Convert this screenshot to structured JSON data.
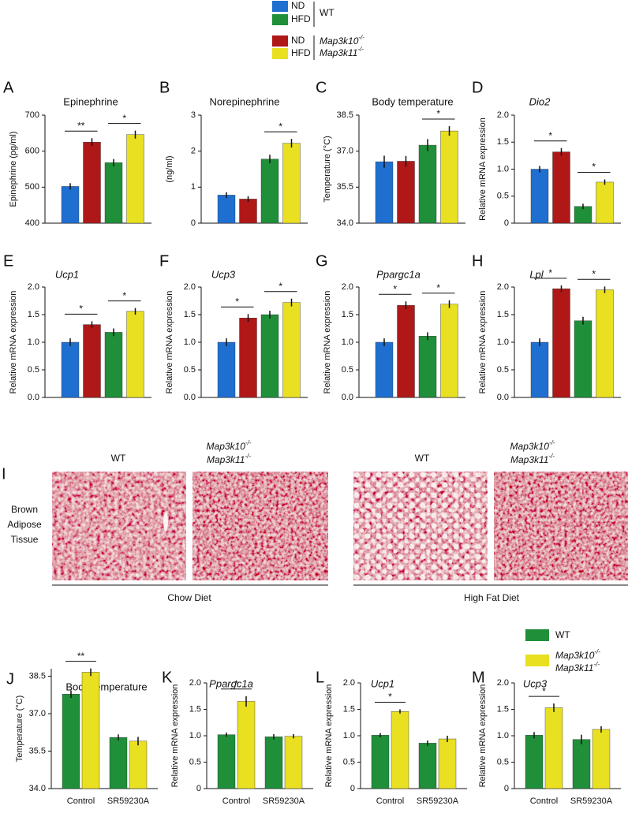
{
  "genotypes": {
    "wt": "WT",
    "ko": [
      {
        "text": "Map3k10",
        "sup": "-/-"
      },
      {
        "text": "Map3k11",
        "sup": "-/-"
      }
    ]
  },
  "legend_top": {
    "entries": [
      {
        "label": "ND",
        "color": "#1f6fd1"
      },
      {
        "label": "HFD",
        "color": "#1f8f3a"
      },
      {
        "label": "ND",
        "color": "#b01818"
      },
      {
        "label": "HFD",
        "color": "#e8e020"
      }
    ]
  },
  "histology": {
    "panel": "I",
    "row_label": [
      "Brown",
      "Adipose",
      "Tissue"
    ],
    "diets": [
      "Chow Diet",
      "High Fat Diet"
    ]
  },
  "legend_bottom": {
    "colors": [
      "#1f8f3a",
      "#e8e020"
    ]
  },
  "chart_data": [
    {
      "type": "bar",
      "panel": "A",
      "title": "Epinephrine",
      "ylabel": "Epinephrine (pg/ml)",
      "values": [
        502,
        625,
        568,
        646
      ],
      "errors": [
        9,
        11,
        10,
        11
      ],
      "colors": [
        "#1f6fd1",
        "#b01818",
        "#1f8f3a",
        "#e8e020"
      ],
      "significance": [
        "**",
        "*"
      ],
      "ylim": [
        400,
        700
      ],
      "yticks": [
        400,
        500,
        600,
        700
      ]
    },
    {
      "type": "bar",
      "panel": "B",
      "title": "Norepinephrine",
      "ylabel": "(ng/ml)",
      "values": [
        0.78,
        0.67,
        1.78,
        2.22
      ],
      "errors": [
        0.08,
        0.08,
        0.12,
        0.12
      ],
      "colors": [
        "#1f6fd1",
        "#b01818",
        "#1f8f3a",
        "#e8e020"
      ],
      "significance": [
        null,
        "*"
      ],
      "ylim": [
        0,
        3
      ],
      "yticks": [
        0,
        1,
        2,
        3
      ]
    },
    {
      "type": "bar",
      "panel": "C",
      "title": "Body temperature",
      "ylabel": "Temperature (°C)",
      "values": [
        36.56,
        36.58,
        37.25,
        37.84
      ],
      "errors": [
        0.25,
        0.22,
        0.25,
        0.2
      ],
      "colors": [
        "#1f6fd1",
        "#b01818",
        "#1f8f3a",
        "#e8e020"
      ],
      "significance": [
        null,
        "*"
      ],
      "ylim": [
        34,
        38.5
      ],
      "yticks": [
        {
          "value": 34,
          "label": "34.0"
        },
        35.5,
        {
          "value": 37,
          "label": "37.0"
        },
        38.5
      ]
    },
    {
      "type": "bar",
      "panel": "D",
      "title": "Dio2",
      "title_italic": true,
      "ylabel": "Relative mRNA expression",
      "values": [
        1.0,
        1.32,
        0.31,
        0.76
      ],
      "errors": [
        0.06,
        0.07,
        0.05,
        0.05
      ],
      "colors": [
        "#1f6fd1",
        "#b01818",
        "#1f8f3a",
        "#e8e020"
      ],
      "significance": [
        "*",
        "*"
      ],
      "ylim": [
        0,
        2
      ],
      "yticks": [
        0,
        0.5,
        {
          "value": 1,
          "label": "1.0"
        },
        1.5,
        {
          "value": 2,
          "label": "2.0"
        }
      ]
    },
    {
      "type": "bar",
      "panel": "E",
      "title": "Ucp1",
      "title_italic": true,
      "ylabel": "Relative mRNA expression",
      "values": [
        1.0,
        1.32,
        1.18,
        1.56
      ],
      "errors": [
        0.07,
        0.06,
        0.07,
        0.06
      ],
      "colors": [
        "#1f6fd1",
        "#b01818",
        "#1f8f3a",
        "#e8e020"
      ],
      "significance": [
        "*",
        "*"
      ],
      "ylim": [
        0,
        2
      ],
      "yticks": [
        {
          "value": 0,
          "label": "0.0"
        },
        0.5,
        {
          "value": 1,
          "label": "1.0"
        },
        1.5,
        {
          "value": 2,
          "label": "2.0"
        }
      ]
    },
    {
      "type": "bar",
      "panel": "F",
      "title": "Ucp3",
      "title_italic": true,
      "ylabel": "Relative mRNA expression",
      "values": [
        1.0,
        1.44,
        1.5,
        1.72
      ],
      "errors": [
        0.07,
        0.07,
        0.07,
        0.07
      ],
      "colors": [
        "#1f6fd1",
        "#b01818",
        "#1f8f3a",
        "#e8e020"
      ],
      "significance": [
        "*",
        "*"
      ],
      "ylim": [
        0,
        2
      ],
      "yticks": [
        {
          "value": 0,
          "label": "0.0"
        },
        0.5,
        {
          "value": 1,
          "label": "1.0"
        },
        1.5,
        {
          "value": 2,
          "label": "2.0"
        }
      ]
    },
    {
      "type": "bar",
      "panel": "G",
      "title": "Ppargc1a",
      "title_italic": true,
      "ylabel": "Relative mRNA expression",
      "values": [
        1.0,
        1.67,
        1.11,
        1.69
      ],
      "errors": [
        0.07,
        0.07,
        0.07,
        0.07
      ],
      "colors": [
        "#1f6fd1",
        "#b01818",
        "#1f8f3a",
        "#e8e020"
      ],
      "significance": [
        "*",
        "*"
      ],
      "ylim": [
        0,
        2
      ],
      "yticks": [
        {
          "value": 0,
          "label": "0.0"
        },
        0.5,
        {
          "value": 1,
          "label": "1.0"
        },
        1.5,
        {
          "value": 2,
          "label": "2.0"
        }
      ]
    },
    {
      "type": "bar",
      "panel": "H",
      "title": "Lpl",
      "title_italic": true,
      "ylabel": "Relative mRNA expression",
      "values": [
        1.0,
        1.97,
        1.39,
        1.95
      ],
      "errors": [
        0.07,
        0.06,
        0.07,
        0.06
      ],
      "colors": [
        "#1f6fd1",
        "#b01818",
        "#1f8f3a",
        "#e8e020"
      ],
      "significance": [
        "*",
        "*"
      ],
      "ylim": [
        0,
        2
      ],
      "yticks": [
        {
          "value": 0,
          "label": "0.0"
        },
        0.5,
        {
          "value": 1,
          "label": "1.0"
        },
        1.5,
        {
          "value": 2,
          "label": "2.0"
        }
      ]
    },
    {
      "type": "bar",
      "panel": "J",
      "title": "Body temperature",
      "ylabel": "Temperature (°C)",
      "categories": [
        "Control",
        "SR59230A"
      ],
      "series": [
        {
          "color": "#1f8f3a",
          "values": [
            37.78,
            36.05
          ],
          "errors": [
            0.15,
            0.12
          ]
        },
        {
          "color": "#e8e020",
          "values": [
            38.66,
            35.9
          ],
          "errors": [
            0.15,
            0.17
          ]
        }
      ],
      "significance": [
        "**",
        null
      ],
      "ylim": [
        34,
        38.8
      ],
      "yticks": [
        {
          "value": 34,
          "label": "34.0"
        },
        35.5,
        {
          "value": 37,
          "label": "37.0"
        },
        38.5
      ]
    },
    {
      "type": "bar",
      "panel": "K",
      "title": "Ppargc1a",
      "title_italic": true,
      "ylabel": "Relative mRNA expression",
      "categories": [
        "Control",
        "SR59230A"
      ],
      "series": [
        {
          "color": "#1f8f3a",
          "values": [
            1.02,
            0.98
          ],
          "errors": [
            0.04,
            0.05
          ]
        },
        {
          "color": "#e8e020",
          "values": [
            1.65,
            0.99
          ],
          "errors": [
            0.1,
            0.04
          ]
        }
      ],
      "significance": [
        "*",
        null
      ],
      "ylim": [
        0,
        2
      ],
      "yticks": [
        0,
        0.5,
        {
          "value": 1,
          "label": "1.0"
        },
        1.5,
        {
          "value": 2,
          "label": "2.0"
        }
      ]
    },
    {
      "type": "bar",
      "panel": "L",
      "title": "Ucp1",
      "title_italic": true,
      "ylabel": "Relative mRNA expression",
      "categories": [
        "Control",
        "SR59230A"
      ],
      "series": [
        {
          "color": "#1f8f3a",
          "values": [
            1.01,
            0.86
          ],
          "errors": [
            0.04,
            0.05
          ]
        },
        {
          "color": "#e8e020",
          "values": [
            1.46,
            0.94
          ],
          "errors": [
            0.04,
            0.06
          ]
        }
      ],
      "significance": [
        "*",
        null
      ],
      "ylim": [
        0,
        2
      ],
      "yticks": [
        0,
        0.5,
        {
          "value": 1,
          "label": "1.0"
        },
        1.5,
        {
          "value": 2,
          "label": "2.0"
        }
      ]
    },
    {
      "type": "bar",
      "panel": "M",
      "title": "Ucp3",
      "title_italic": true,
      "ylabel": "Relative mRNA expression",
      "categories": [
        "Control",
        "SR59230A"
      ],
      "series": [
        {
          "color": "#1f8f3a",
          "values": [
            1.01,
            0.93
          ],
          "errors": [
            0.06,
            0.09
          ]
        },
        {
          "color": "#e8e020",
          "values": [
            1.53,
            1.12
          ],
          "errors": [
            0.08,
            0.06
          ]
        }
      ],
      "significance": [
        "*",
        null
      ],
      "ylim": [
        0,
        2
      ],
      "yticks": [
        0,
        0.5,
        {
          "value": 1,
          "label": "1.0"
        },
        1.5,
        {
          "value": 2,
          "label": "2.0"
        }
      ]
    }
  ]
}
